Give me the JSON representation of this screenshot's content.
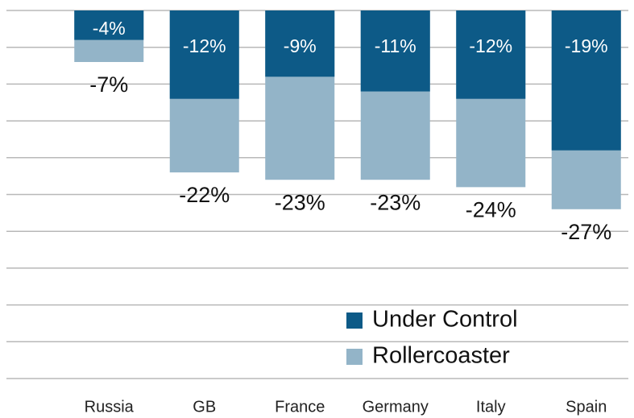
{
  "chart_data": {
    "type": "bar",
    "categories": [
      "Russia",
      "GB",
      "France",
      "Germany",
      "Italy",
      "Spain"
    ],
    "series": [
      {
        "name": "Rollercoaster",
        "color": "#93b4c8",
        "values": [
          -7,
          -22,
          -23,
          -23,
          -24,
          -27
        ],
        "value_labels": [
          "-7%",
          "-22%",
          "-23%",
          "-23%",
          "-24%",
          "-27%"
        ]
      },
      {
        "name": "Under Control",
        "color": "#0d5a87",
        "values": [
          -4,
          -12,
          -9,
          -11,
          -12,
          -19
        ],
        "value_labels": [
          "-4%",
          "-12%",
          "-9%",
          "-11%",
          "-12%",
          "-19%"
        ]
      }
    ],
    "ylim": [
      -50,
      0
    ],
    "yticks": [
      0,
      -5,
      -10,
      -15,
      -20,
      -25,
      -30,
      -35,
      -40,
      -45,
      -50
    ],
    "grid": true
  }
}
